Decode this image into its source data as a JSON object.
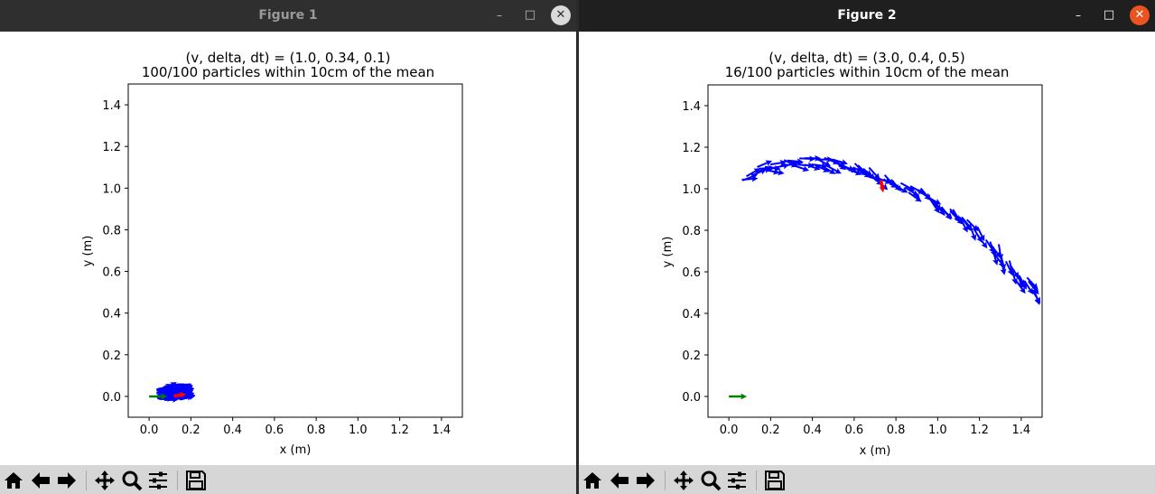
{
  "windows": [
    {
      "title": "Figure 1",
      "controls": {
        "minimize": "–",
        "maximize": "□",
        "close": "✕"
      },
      "active": false,
      "chart_data": {
        "type": "quiver",
        "title_line1": "(v, delta, dt) = (1.0, 0.34, 0.1)",
        "title_line2": "100/100 particles within 10cm of the mean",
        "xlabel": "x (m)",
        "ylabel": "y (m)",
        "xlim": [
          -0.1,
          1.5
        ],
        "ylim": [
          -0.1,
          1.5
        ],
        "xticks": [
          "0.0",
          "0.2",
          "0.4",
          "0.6",
          "0.8",
          "1.0",
          "1.2",
          "1.4"
        ],
        "yticks": [
          "0.0",
          "0.2",
          "0.4",
          "0.6",
          "0.8",
          "1.0",
          "1.2",
          "1.4"
        ],
        "colors": {
          "start": "#008000",
          "particles": "#0000ff",
          "mean": "#ff0000"
        },
        "start_pose": {
          "x": 0.0,
          "y": 0.0,
          "theta_deg": 0
        },
        "mean_pose": {
          "x": 0.14,
          "y": 0.01,
          "theta_deg": 10
        },
        "particles": {
          "count": 100,
          "cluster_center": [
            0.13,
            0.01
          ],
          "spread_x": 0.06,
          "spread_y": 0.025,
          "heading_deg": 15
        }
      }
    },
    {
      "title": "Figure 2",
      "controls": {
        "minimize": "–",
        "maximize": "□",
        "close": "✕"
      },
      "active": true,
      "chart_data": {
        "type": "quiver",
        "title_line1": "(v, delta, dt) = (3.0, 0.4, 0.5)",
        "title_line2": "16/100 particles within 10cm of the mean",
        "xlabel": "x (m)",
        "ylabel": "y (m)",
        "xlim": [
          -0.1,
          1.5
        ],
        "ylim": [
          -0.1,
          1.5
        ],
        "xticks": [
          "0.0",
          "0.2",
          "0.4",
          "0.6",
          "0.8",
          "1.0",
          "1.2",
          "1.4"
        ],
        "yticks": [
          "0.0",
          "0.2",
          "0.4",
          "0.6",
          "0.8",
          "1.0",
          "1.2",
          "1.4"
        ],
        "colors": {
          "start": "#008000",
          "particles": "#0000ff",
          "mean": "#ff0000"
        },
        "start_pose": {
          "x": 0.0,
          "y": 0.0,
          "theta_deg": 0
        },
        "mean_pose": {
          "x": 0.75,
          "y": 1.05,
          "theta_deg": -80
        },
        "particles": {
          "count": 100,
          "path": [
            [
              0.05,
              1.03
            ],
            [
              0.15,
              1.09
            ],
            [
              0.25,
              1.12
            ],
            [
              0.35,
              1.13
            ],
            [
              0.45,
              1.13
            ],
            [
              0.55,
              1.12
            ],
            [
              0.65,
              1.09
            ],
            [
              0.75,
              1.06
            ],
            [
              0.85,
              1.01
            ],
            [
              0.95,
              0.96
            ],
            [
              1.05,
              0.9
            ],
            [
              1.15,
              0.83
            ],
            [
              1.25,
              0.74
            ],
            [
              1.32,
              0.65
            ],
            [
              1.4,
              0.57
            ],
            [
              1.47,
              0.51
            ]
          ],
          "arrow_length_m": 0.06
        }
      }
    }
  ],
  "toolbar": [
    {
      "name": "home",
      "icon": "home-icon"
    },
    {
      "name": "back",
      "icon": "arrow-left-icon"
    },
    {
      "name": "forward",
      "icon": "arrow-right-icon"
    },
    {
      "name": "pan",
      "icon": "move-icon"
    },
    {
      "name": "zoom",
      "icon": "magnifier-icon"
    },
    {
      "name": "subplots",
      "icon": "sliders-icon"
    },
    {
      "name": "save",
      "icon": "floppy-disk-icon"
    }
  ]
}
